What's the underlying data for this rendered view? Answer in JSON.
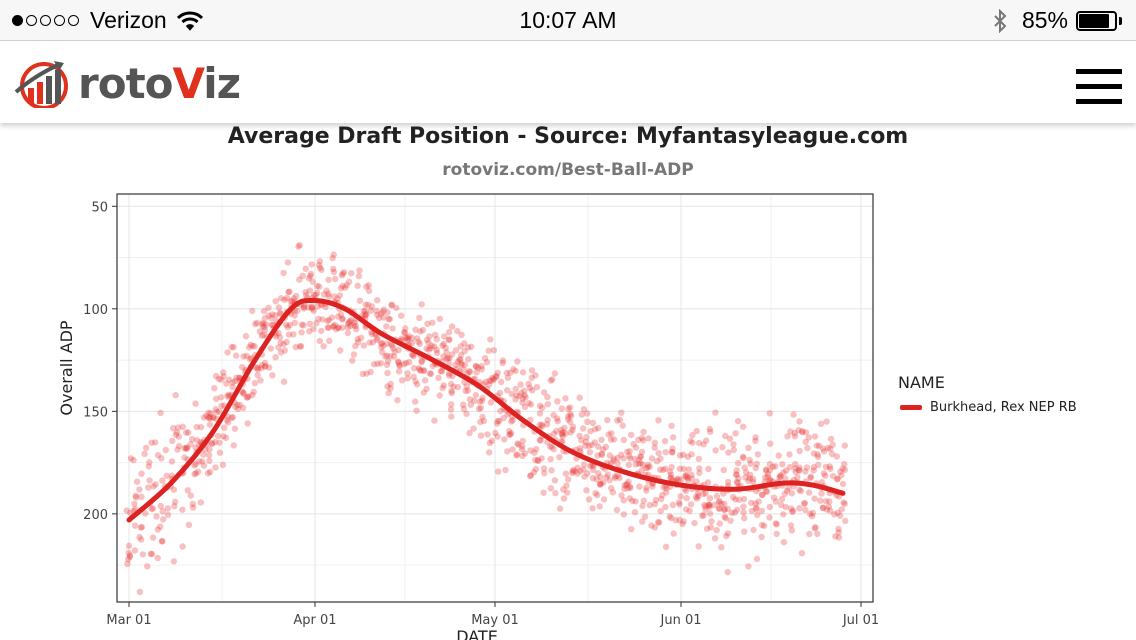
{
  "status_bar": {
    "signal_dots_filled": 1,
    "signal_dots_total": 5,
    "carrier": "Verizon",
    "wifi_icon": "wifi-icon",
    "time": "10:07 AM",
    "bluetooth_icon": "bluetooth-icon",
    "battery_percent": "85%",
    "battery_level": 0.85
  },
  "header": {
    "logo_text_1": "roto",
    "logo_text_2": "V",
    "logo_text_3": "iz",
    "menu_icon": "hamburger-menu-icon",
    "brand_red": "#e0301e",
    "brand_gray": "#555555"
  },
  "chart_data": {
    "type": "scatter",
    "title": "Average Draft Position - Source: Myfantasyleague.com",
    "subtitle": "rotoviz.com/Best-Ball-ADP",
    "xlabel": "DATE",
    "ylabel": "Overall ADP",
    "x_ticks": [
      "Mar 01",
      "Apr 01",
      "May 01",
      "Jun 01",
      "Jul 01"
    ],
    "y_ticks": [
      50,
      100,
      150,
      200
    ],
    "ylim": [
      240,
      45
    ],
    "y_reversed": true,
    "grid": true,
    "legend_title": "NAME",
    "legend_placement": "right",
    "point_color": "#e83a3a",
    "line_color": "#dd2222",
    "series": [
      {
        "name": "Burkhead, Rex NEP RB",
        "smooth": [
          [
            "2017-03-01",
            203
          ],
          [
            "2017-03-08",
            185
          ],
          [
            "2017-03-15",
            160
          ],
          [
            "2017-03-22",
            125
          ],
          [
            "2017-03-28",
            100
          ],
          [
            "2017-04-01",
            96
          ],
          [
            "2017-04-06",
            100
          ],
          [
            "2017-04-12",
            112
          ],
          [
            "2017-04-20",
            124
          ],
          [
            "2017-04-28",
            137
          ],
          [
            "2017-05-06",
            155
          ],
          [
            "2017-05-14",
            170
          ],
          [
            "2017-05-23",
            180
          ],
          [
            "2017-06-01",
            186
          ],
          [
            "2017-06-10",
            188
          ],
          [
            "2017-06-18",
            185
          ],
          [
            "2017-06-23",
            186
          ],
          [
            "2017-06-28",
            190
          ]
        ]
      }
    ]
  }
}
